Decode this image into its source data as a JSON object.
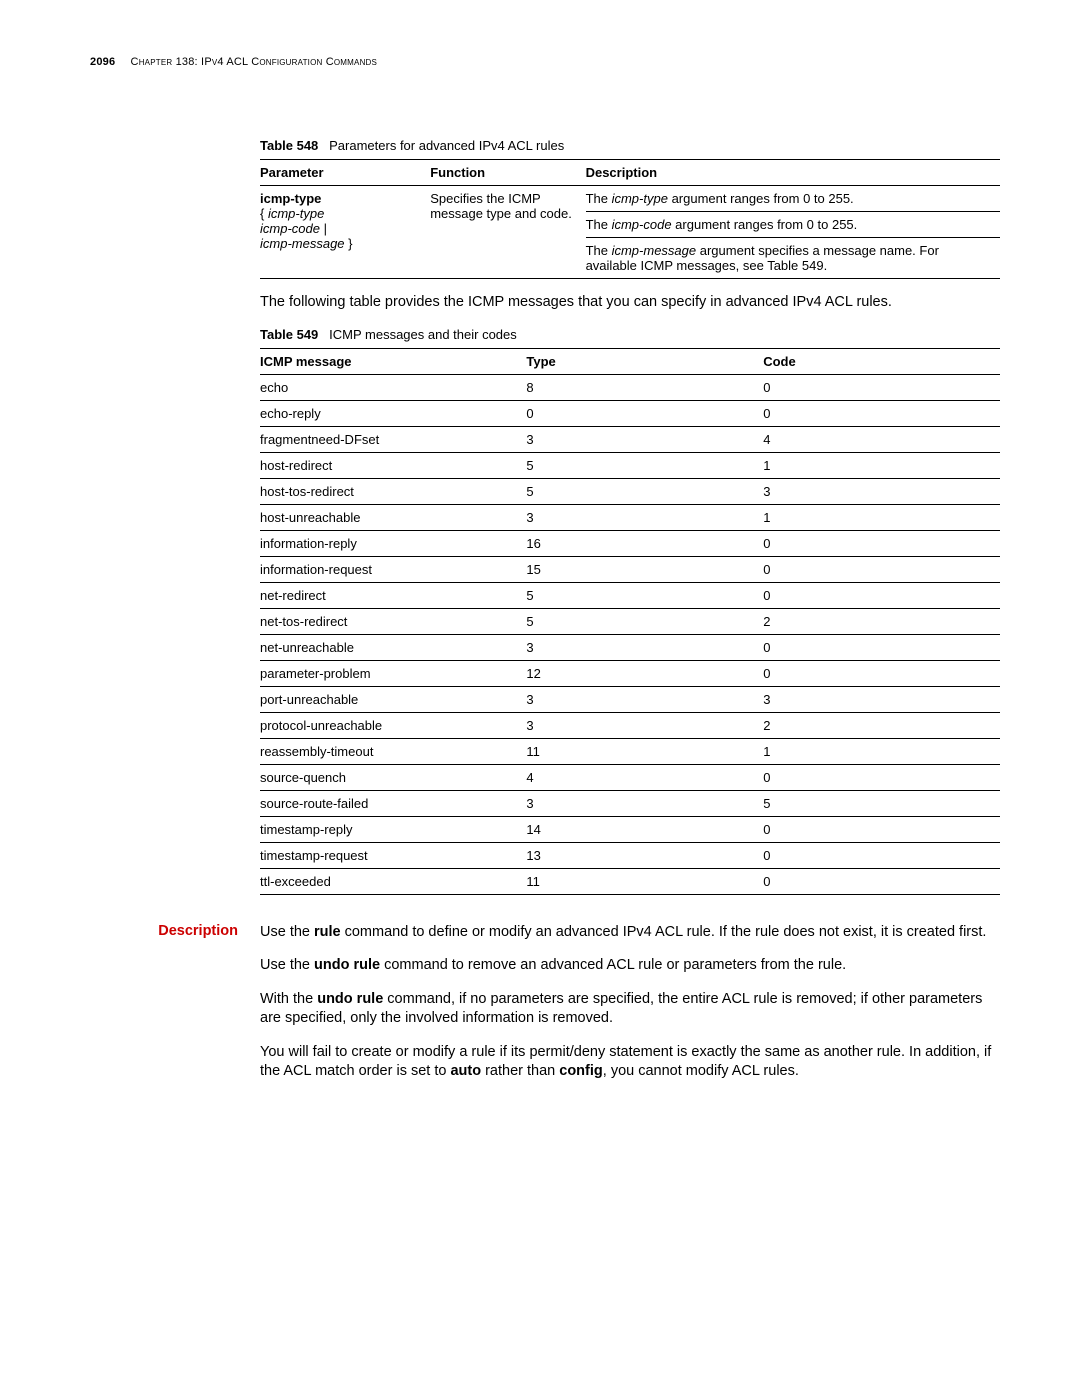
{
  "header": {
    "page_number": "2096",
    "chapter": "Chapter 138: IPv4 ACL Configuration Commands"
  },
  "table548": {
    "label": "Table 548",
    "title": "Parameters for advanced IPv4 ACL rules",
    "headers": [
      "Parameter",
      "Function",
      "Description"
    ],
    "param_bold": "icmp-type",
    "param_rest1": "{ ",
    "param_ital1": "icmp-type",
    "param_rest2": "icmp-code",
    "param_rest3": " |",
    "param_ital2": "icmp-message",
    "param_rest4": " }",
    "func": "Specifies the ICMP message type and code.",
    "desc1a": "The ",
    "desc1b": "icmp-type",
    "desc1c": " argument ranges from 0 to 255.",
    "desc2a": "The ",
    "desc2b": "icmp-code",
    "desc2c": " argument ranges from 0 to 255.",
    "desc3a": "The ",
    "desc3b": "icmp-message",
    "desc3c": " argument specifies a message name. For available ICMP messages, see Table 549."
  },
  "intro549": "The following table provides the ICMP messages that you can specify in advanced IPv4 ACL rules.",
  "table549": {
    "label": "Table 549",
    "title": "ICMP messages and their codes",
    "headers": [
      "ICMP message",
      "Type",
      "Code"
    ],
    "rows": [
      [
        "echo",
        "8",
        "0"
      ],
      [
        "echo-reply",
        "0",
        "0"
      ],
      [
        "fragmentneed-DFset",
        "3",
        "4"
      ],
      [
        "host-redirect",
        "5",
        "1"
      ],
      [
        "host-tos-redirect",
        "5",
        "3"
      ],
      [
        "host-unreachable",
        "3",
        "1"
      ],
      [
        "information-reply",
        "16",
        "0"
      ],
      [
        "information-request",
        "15",
        "0"
      ],
      [
        "net-redirect",
        "5",
        "0"
      ],
      [
        "net-tos-redirect",
        "5",
        "2"
      ],
      [
        "net-unreachable",
        "3",
        "0"
      ],
      [
        "parameter-problem",
        "12",
        "0"
      ],
      [
        "port-unreachable",
        "3",
        "3"
      ],
      [
        "protocol-unreachable",
        "3",
        "2"
      ],
      [
        "reassembly-timeout",
        "11",
        "1"
      ],
      [
        "source-quench",
        "4",
        "0"
      ],
      [
        "source-route-failed",
        "3",
        "5"
      ],
      [
        "timestamp-reply",
        "14",
        "0"
      ],
      [
        "timestamp-request",
        "13",
        "0"
      ],
      [
        "ttl-exceeded",
        "11",
        "0"
      ]
    ]
  },
  "description": {
    "label": "Description",
    "p1a": "Use the ",
    "p1b": "rule",
    "p1c": " command to define or modify an advanced IPv4 ACL rule. If the rule does not exist, it is created first.",
    "p2a": "Use the ",
    "p2b": "undo rule",
    "p2c": " command to remove an advanced ACL rule or parameters from the rule.",
    "p3a": "With the ",
    "p3b": "undo rule",
    "p3c": " command, if no parameters are specified, the entire ACL rule is removed; if other parameters are specified, only the involved information is removed.",
    "p4a": "You will fail to create or modify a rule if its permit/deny statement is exactly the same as another rule. In addition, if the ACL match order is set to ",
    "p4b": "auto",
    "p4c": " rather than ",
    "p4d": "config",
    "p4e": ", you cannot modify ACL rules."
  }
}
